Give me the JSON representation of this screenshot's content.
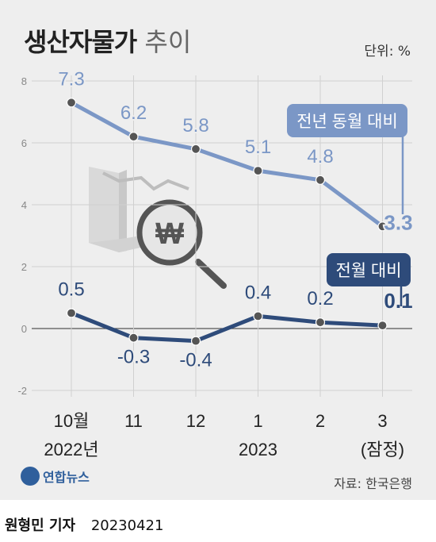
{
  "title_bold": "생산자물가",
  "title_light": "추이",
  "unit": "단위: %",
  "source": "자료: 한국은행",
  "logo_text": "연합뉴스",
  "byline_name": "원형민 기자",
  "byline_date": "20230421",
  "chart_data": {
    "type": "line",
    "categories": [
      "10월",
      "11",
      "12",
      "1",
      "2",
      "3"
    ],
    "x_sublabels": [
      "2022년",
      "",
      "",
      "2023",
      "",
      "(잠정)"
    ],
    "series": [
      {
        "name": "전년 동월 대비",
        "values": [
          7.3,
          6.2,
          5.8,
          5.1,
          4.8,
          3.3
        ],
        "color": "#7b97c6"
      },
      {
        "name": "전월 대비",
        "values": [
          0.5,
          -0.3,
          -0.4,
          0.4,
          0.2,
          0.1
        ],
        "color": "#2e4b7a"
      }
    ],
    "ylim": [
      -2,
      8
    ],
    "yticks": [
      -2,
      0,
      2,
      4,
      6,
      8
    ],
    "grid": true
  }
}
